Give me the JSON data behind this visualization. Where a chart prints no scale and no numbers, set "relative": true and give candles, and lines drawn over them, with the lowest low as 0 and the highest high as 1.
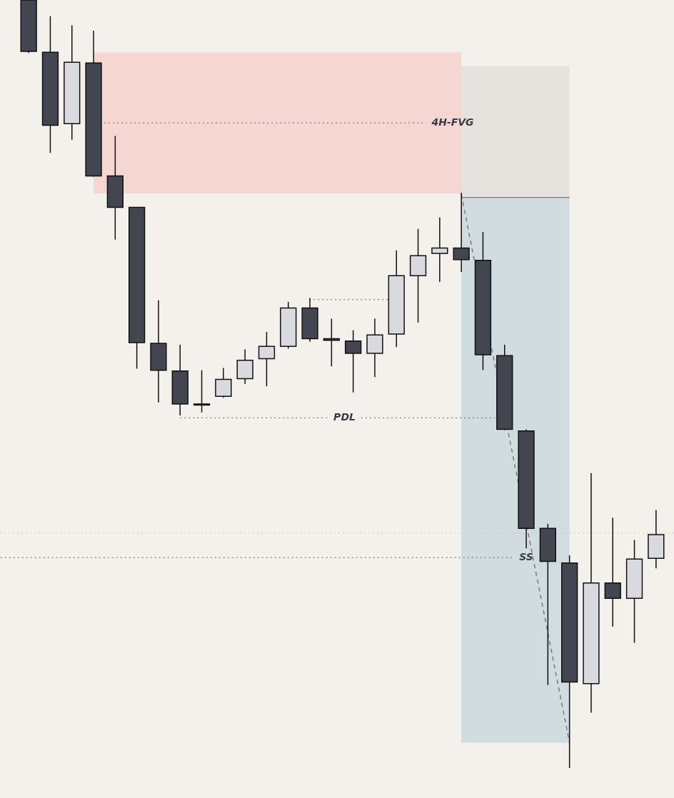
{
  "chart_data": {
    "type": "candlestick",
    "relative": true,
    "legend": false,
    "categories": [
      null,
      null,
      null,
      null,
      null,
      null,
      null,
      null,
      null,
      null,
      null,
      null,
      null,
      null,
      null,
      null,
      null,
      null,
      null,
      null,
      null,
      null,
      null,
      null,
      null,
      null,
      null,
      null,
      null,
      null
    ],
    "ohlc": [
      [
        1.0,
        1.0,
        0.931,
        0.933
      ],
      [
        0.932,
        0.979,
        0.801,
        0.837
      ],
      [
        0.839,
        0.967,
        0.818,
        0.919
      ],
      [
        0.918,
        0.96,
        0.77,
        0.771
      ],
      [
        0.771,
        0.823,
        0.688,
        0.73
      ],
      [
        0.73,
        0.73,
        0.52,
        0.554
      ],
      [
        0.553,
        0.609,
        0.476,
        0.518
      ],
      [
        0.517,
        0.551,
        0.459,
        0.474
      ],
      [
        0.474,
        0.518,
        0.463,
        0.474
      ],
      [
        0.484,
        0.521,
        0.482,
        0.506
      ],
      [
        0.507,
        0.545,
        0.5,
        0.531
      ],
      [
        0.533,
        0.568,
        0.497,
        0.549
      ],
      [
        0.549,
        0.607,
        0.546,
        0.599
      ],
      [
        0.599,
        0.612,
        0.555,
        0.559
      ],
      [
        0.559,
        0.585,
        0.523,
        0.557
      ],
      [
        0.556,
        0.57,
        0.489,
        0.54
      ],
      [
        0.54,
        0.585,
        0.509,
        0.564
      ],
      [
        0.565,
        0.674,
        0.548,
        0.641
      ],
      [
        0.641,
        0.702,
        0.58,
        0.667
      ],
      [
        0.67,
        0.717,
        0.633,
        0.677
      ],
      [
        0.677,
        0.749,
        0.646,
        0.662
      ],
      [
        0.661,
        0.698,
        0.518,
        0.538
      ],
      [
        0.537,
        0.551,
        0.44,
        0.441
      ],
      [
        0.439,
        0.441,
        0.286,
        0.312
      ],
      [
        0.312,
        0.318,
        0.108,
        0.269
      ],
      [
        0.267,
        0.277,
        0.0,
        0.112
      ],
      [
        0.11,
        0.384,
        0.072,
        0.241
      ],
      [
        0.241,
        0.326,
        0.184,
        0.221
      ],
      [
        0.221,
        0.297,
        0.163,
        0.272
      ],
      [
        0.273,
        0.336,
        0.26,
        0.304
      ]
    ],
    "colors": [
      "#434651",
      "#434651",
      "#d9dae0",
      "#434651",
      "#434651",
      "#434651",
      "#434651",
      "#434651",
      "#434651",
      "#d9dae0",
      "#d9dae0",
      "#d9dae0",
      "#d9dae0",
      "#434651",
      "#434651",
      "#434651",
      "#d9dae0",
      "#d9dae0",
      "#d9dae0",
      "#d9dae0",
      "#434651",
      "#434651",
      "#434651",
      "#434651",
      "#434651",
      "#434651",
      "#d9dae0",
      "#434651",
      "#d9dae0",
      "#d9dae0"
    ],
    "series": [
      {
        "type": "line",
        "color": "#787b86",
        "line_style": "dashed",
        "values": [
          null,
          null,
          null,
          null,
          null,
          null,
          null,
          null,
          null,
          null,
          null,
          null,
          null,
          null,
          null,
          null,
          null,
          null,
          null,
          null,
          0.747,
          null,
          null,
          null,
          null,
          0.033,
          null,
          null,
          null,
          null
        ]
      }
    ],
    "bands": [
      {
        "axis": "y",
        "from": 0.748,
        "to": 0.932,
        "color": "#f5d6d3"
      },
      {
        "axis": "y",
        "from": 0.743,
        "to": 0.914,
        "color": "#e6e3df"
      },
      {
        "axis": "y",
        "from": 0.033,
        "to": 0.743,
        "color": "#d0dcdf"
      }
    ],
    "ref_lines": [
      {
        "axis": "y",
        "value": 0.84,
        "label": "4H-FVG",
        "line_style": "dotted",
        "color": "#787b86"
      },
      {
        "axis": "y",
        "value": 0.456,
        "label": "PDL",
        "line_style": "dotted",
        "color": "#787b86"
      },
      {
        "axis": "y",
        "value": 0.61,
        "line_style": "dotted",
        "color": "#787b86"
      },
      {
        "axis": "y",
        "value": 0.274,
        "label": "SS",
        "line_style": "dotted",
        "color": "#787b86"
      },
      {
        "axis": "y",
        "value": 0.306,
        "line_style": "dotted",
        "color": "#c7c8cc"
      },
      {
        "axis": "y",
        "value": 0.743,
        "line_style": "solid",
        "color": "#787b86"
      }
    ]
  }
}
